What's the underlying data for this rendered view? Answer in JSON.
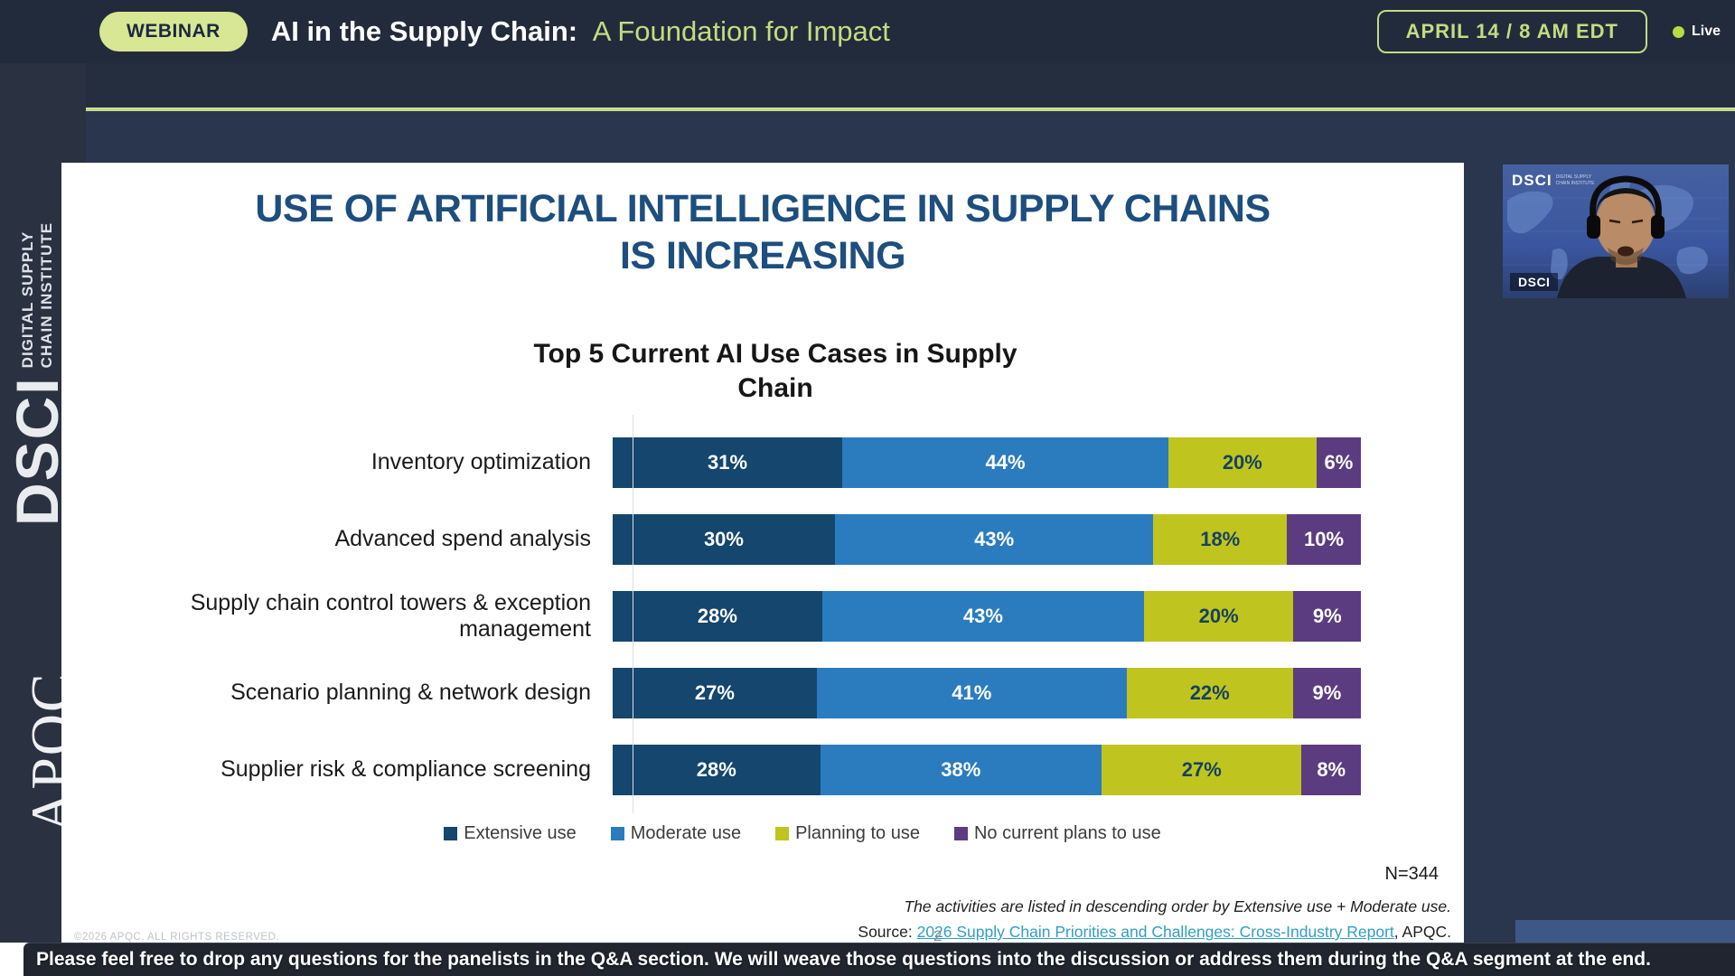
{
  "colors": {
    "accent_green": "#c3dc82",
    "badge_bg": "#d7e794",
    "badge_text": "#1d2840",
    "header_bg": "#222b3b",
    "page_bg": "#2a364d",
    "band_bg": "#242e3f",
    "sidebar_bg": "#2a3140",
    "slide_bg": "#ffffff",
    "title_blue": "#1d4e7e",
    "link_teal": "#2f9fc4",
    "footer_bg": "#20252f",
    "live_dot": "#b5dc45",
    "panel_blue": "#3d5886"
  },
  "header": {
    "badge": "WEBINAR",
    "title_main": "AI in the Supply Chain:",
    "title_accent": "A Foundation for Impact",
    "date_badge": "APRIL 14 / 8 AM EDT",
    "live_label": "Live"
  },
  "sidebar": {
    "dsci_logo": "DSCI",
    "dsci_sub1": "DIGITAL SUPPLY",
    "dsci_sub2": "CHAIN INSTITUTE",
    "apqc_logo": "APQC"
  },
  "slide": {
    "title_line1": "USE OF ARTIFICIAL INTELLIGENCE IN SUPPLY CHAINS",
    "title_line2": "IS INCREASING",
    "sample_size": "N=344",
    "footnote": "The activities are listed in descending order by Extensive use + Moderate use.",
    "source_prefix": "Source: ",
    "source_link": "2026 Supply Chain Priorities and Challenges: Cross-Industry Report",
    "source_suffix": ", APQC.",
    "copyright": "©2026 APQC. ALL RIGHTS RESERVED.",
    "page_number": "2"
  },
  "chart_data": {
    "type": "bar",
    "variant": "horizontal-stacked",
    "title": "Top 5 Current AI Use Cases in Supply Chain",
    "categories": [
      "Inventory optimization",
      "Advanced spend analysis",
      "Supply chain control towers & exception management",
      "Scenario planning & network design",
      "Supplier risk & compliance screening"
    ],
    "series": [
      {
        "name": "Extensive use",
        "color": "#14466e",
        "text_color": "#ffffff",
        "values": [
          31,
          30,
          28,
          27,
          28
        ]
      },
      {
        "name": "Moderate use",
        "color": "#2a7cbf",
        "text_color": "#ffffff",
        "values": [
          44,
          43,
          43,
          41,
          38
        ]
      },
      {
        "name": "Planning to use",
        "color": "#c0c41f",
        "text_color": "#15425f",
        "values": [
          20,
          18,
          20,
          22,
          27
        ]
      },
      {
        "name": "No current plans to use",
        "color": "#5b3c80",
        "text_color": "#ffffff",
        "values": [
          6,
          10,
          9,
          9,
          8
        ]
      }
    ],
    "value_suffix": "%",
    "legend_position": "bottom",
    "sample_size": "N=344",
    "x_axis_hidden": true
  },
  "webcam": {
    "logo": "DSCI",
    "logo_sub1": "DIGITAL SUPPLY",
    "logo_sub2": "CHAIN INSTITUTE",
    "name_label": "DSCI"
  },
  "footer": {
    "message": "Please feel free to drop any questions for the panelists in the Q&A section.  We will weave those questions into the discussion or address them during the Q&A segment at the end."
  }
}
